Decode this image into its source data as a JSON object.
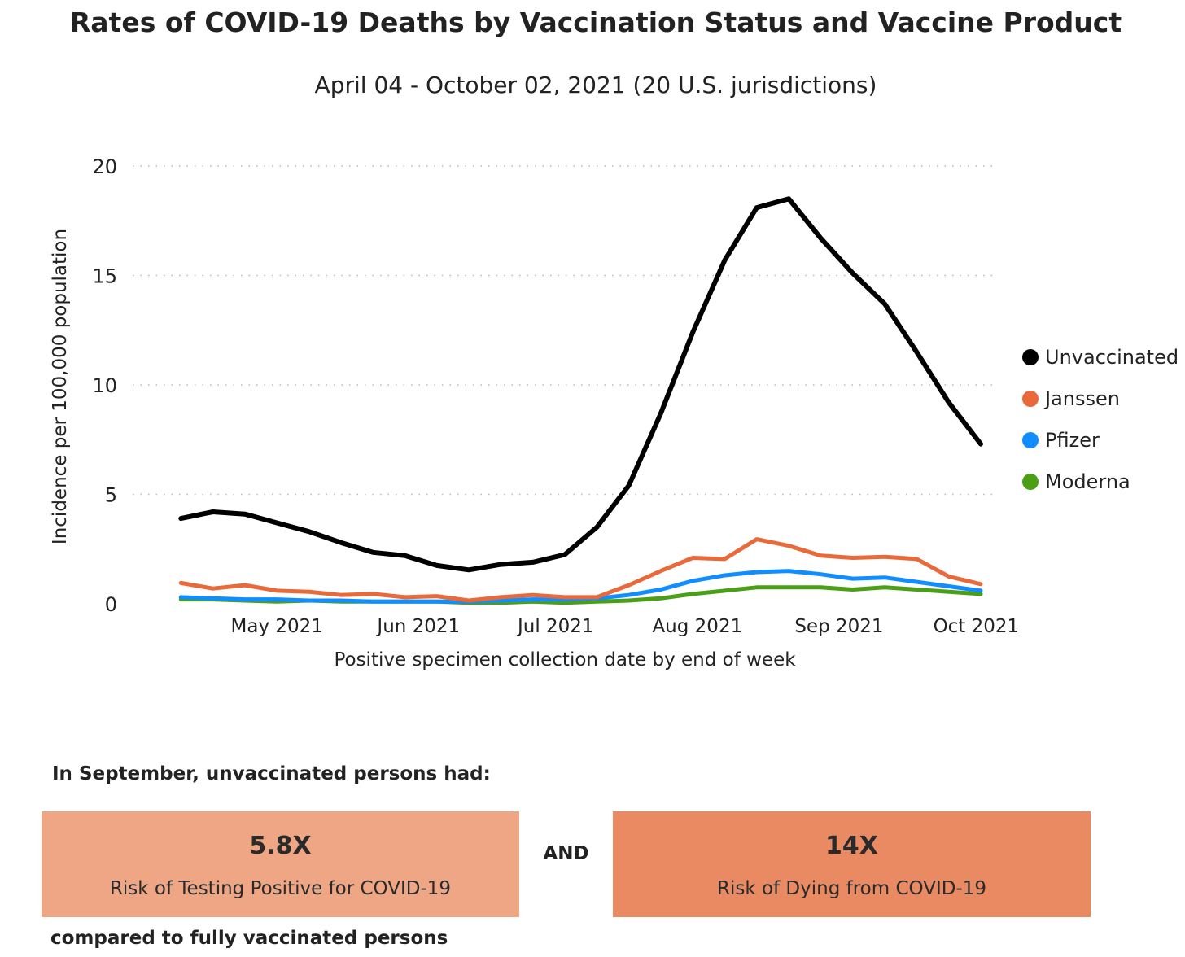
{
  "chart_data": {
    "type": "line",
    "title": "Rates of COVID-19 Deaths by Vaccination Status and Vaccine Product",
    "subtitle": "April 04 - October 02, 2021 (20 U.S. jurisdictions)",
    "xlabel": "Positive specimen collection date by end of week",
    "ylabel": "Incidence per 100,000 population",
    "ylim": [
      0,
      20
    ],
    "yticks": [
      0,
      5,
      10,
      15,
      20
    ],
    "xlim": [
      "2021-04-03",
      "2021-10-02"
    ],
    "xticks": [
      {
        "label": "May 2021",
        "date": "2021-05-01"
      },
      {
        "label": "Jun 2021",
        "date": "2021-06-01"
      },
      {
        "label": "Jul 2021",
        "date": "2021-07-01"
      },
      {
        "label": "Aug 2021",
        "date": "2021-08-01"
      },
      {
        "label": "Sep 2021",
        "date": "2021-09-01"
      },
      {
        "label": "Oct 2021",
        "date": "2021-10-01"
      }
    ],
    "grid": "horizontal dotted",
    "legend_position": "right",
    "x": [
      "2021-04-10",
      "2021-04-17",
      "2021-04-24",
      "2021-05-01",
      "2021-05-08",
      "2021-05-15",
      "2021-05-22",
      "2021-05-29",
      "2021-06-05",
      "2021-06-12",
      "2021-06-19",
      "2021-06-26",
      "2021-07-03",
      "2021-07-10",
      "2021-07-17",
      "2021-07-24",
      "2021-07-31",
      "2021-08-07",
      "2021-08-14",
      "2021-08-21",
      "2021-08-28",
      "2021-09-04",
      "2021-09-11",
      "2021-09-18",
      "2021-09-25",
      "2021-10-02"
    ],
    "series": [
      {
        "name": "Unvaccinated",
        "color": "#000000",
        "values": [
          3.9,
          4.2,
          4.1,
          3.7,
          3.3,
          2.8,
          2.35,
          2.2,
          1.75,
          1.55,
          1.8,
          1.9,
          2.25,
          3.5,
          5.4,
          8.7,
          12.4,
          15.7,
          18.1,
          18.5,
          16.7,
          15.1,
          13.7,
          11.5,
          9.2,
          7.3
        ]
      },
      {
        "name": "Janssen",
        "color": "#e8693a",
        "values": [
          0.95,
          0.7,
          0.85,
          0.6,
          0.55,
          0.4,
          0.45,
          0.3,
          0.35,
          0.15,
          0.3,
          0.4,
          0.3,
          0.3,
          0.85,
          1.5,
          2.1,
          2.05,
          2.95,
          2.65,
          2.2,
          2.1,
          2.15,
          2.05,
          1.25,
          0.9
        ]
      },
      {
        "name": "Pfizer",
        "color": "#118dff",
        "values": [
          0.3,
          0.25,
          0.2,
          0.2,
          0.15,
          0.15,
          0.1,
          0.1,
          0.1,
          0.1,
          0.15,
          0.2,
          0.2,
          0.25,
          0.4,
          0.65,
          1.05,
          1.3,
          1.45,
          1.5,
          1.35,
          1.15,
          1.2,
          1.0,
          0.8,
          0.6
        ]
      },
      {
        "name": "Moderna",
        "color": "#4b9f16",
        "values": [
          0.2,
          0.2,
          0.15,
          0.1,
          0.15,
          0.1,
          0.1,
          0.1,
          0.1,
          0.05,
          0.05,
          0.1,
          0.05,
          0.1,
          0.15,
          0.25,
          0.45,
          0.6,
          0.75,
          0.75,
          0.75,
          0.65,
          0.75,
          0.65,
          0.55,
          0.45
        ]
      }
    ]
  },
  "summary": {
    "intro": "In September, unvaccinated persons had:",
    "box1_value": "5.8X",
    "box1_label": "Risk of Testing Positive for COVID-19",
    "connector": "AND",
    "box2_value": "14X",
    "box2_label": "Risk of Dying from COVID-19",
    "outro": "compared to fully vaccinated persons",
    "box1_color": "#efa685",
    "box2_color": "#e98a62"
  }
}
